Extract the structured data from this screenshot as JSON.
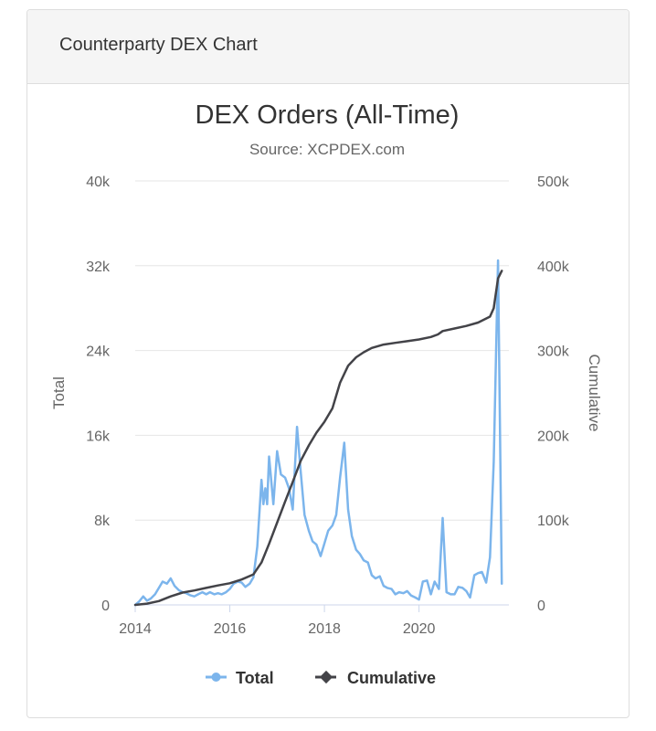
{
  "panel": {
    "title": "Counterparty DEX Chart"
  },
  "chart_data": {
    "type": "line",
    "title": "DEX Orders (All-Time)",
    "subtitle": "Source: XCPDEX.com",
    "grid": true,
    "legend_placement": "bottom-center",
    "x_axis": {
      "label": "",
      "min": 2014.0,
      "max": 2021.9,
      "ticks": [
        "2014",
        "2016",
        "2018",
        "2020"
      ],
      "tick_values": [
        2014,
        2016,
        2018,
        2020
      ]
    },
    "y_axis_left": {
      "label": "Total",
      "min": 0,
      "max": 40000,
      "ticks": [
        "0",
        "8k",
        "16k",
        "24k",
        "32k",
        "40k"
      ],
      "tick_values": [
        0,
        8000,
        16000,
        24000,
        32000,
        40000
      ]
    },
    "y_axis_right": {
      "label": "Cumulative",
      "min": 0,
      "max": 500000,
      "ticks": [
        "0",
        "100k",
        "200k",
        "300k",
        "400k",
        "500k"
      ],
      "tick_values": [
        0,
        100000,
        200000,
        300000,
        400000,
        500000
      ]
    },
    "series": [
      {
        "name": "Total",
        "axis": "left",
        "color": "#7cb5ec",
        "points": [
          [
            2014.0,
            0
          ],
          [
            2014.08,
            300
          ],
          [
            2014.17,
            800
          ],
          [
            2014.25,
            400
          ],
          [
            2014.33,
            600
          ],
          [
            2014.42,
            1000
          ],
          [
            2014.5,
            1600
          ],
          [
            2014.58,
            2200
          ],
          [
            2014.67,
            2000
          ],
          [
            2014.75,
            2500
          ],
          [
            2014.83,
            1800
          ],
          [
            2014.92,
            1400
          ],
          [
            2015.0,
            1200
          ],
          [
            2015.08,
            1100
          ],
          [
            2015.17,
            900
          ],
          [
            2015.25,
            800
          ],
          [
            2015.33,
            1000
          ],
          [
            2015.42,
            1200
          ],
          [
            2015.5,
            1000
          ],
          [
            2015.58,
            1200
          ],
          [
            2015.67,
            1000
          ],
          [
            2015.75,
            1100
          ],
          [
            2015.83,
            1000
          ],
          [
            2015.92,
            1200
          ],
          [
            2016.0,
            1500
          ],
          [
            2016.08,
            2000
          ],
          [
            2016.17,
            2200
          ],
          [
            2016.25,
            2100
          ],
          [
            2016.33,
            1700
          ],
          [
            2016.42,
            2000
          ],
          [
            2016.5,
            2600
          ],
          [
            2016.58,
            5500
          ],
          [
            2016.67,
            11800
          ],
          [
            2016.71,
            9500
          ],
          [
            2016.75,
            11000
          ],
          [
            2016.79,
            9500
          ],
          [
            2016.83,
            14000
          ],
          [
            2016.92,
            9500
          ],
          [
            2017.0,
            14500
          ],
          [
            2017.08,
            12300
          ],
          [
            2017.17,
            12000
          ],
          [
            2017.25,
            11000
          ],
          [
            2017.33,
            9000
          ],
          [
            2017.42,
            16800
          ],
          [
            2017.5,
            12500
          ],
          [
            2017.58,
            8500
          ],
          [
            2017.67,
            7000
          ],
          [
            2017.75,
            6000
          ],
          [
            2017.83,
            5700
          ],
          [
            2017.92,
            4600
          ],
          [
            2018.0,
            5800
          ],
          [
            2018.08,
            7000
          ],
          [
            2018.17,
            7500
          ],
          [
            2018.25,
            8500
          ],
          [
            2018.33,
            12000
          ],
          [
            2018.42,
            15300
          ],
          [
            2018.5,
            9000
          ],
          [
            2018.58,
            6500
          ],
          [
            2018.67,
            5200
          ],
          [
            2018.75,
            4800
          ],
          [
            2018.83,
            4200
          ],
          [
            2018.92,
            4000
          ],
          [
            2019.0,
            2800
          ],
          [
            2019.08,
            2500
          ],
          [
            2019.17,
            2700
          ],
          [
            2019.25,
            1800
          ],
          [
            2019.33,
            1600
          ],
          [
            2019.42,
            1500
          ],
          [
            2019.5,
            1000
          ],
          [
            2019.58,
            1200
          ],
          [
            2019.67,
            1100
          ],
          [
            2019.75,
            1300
          ],
          [
            2019.83,
            900
          ],
          [
            2019.92,
            700
          ],
          [
            2020.0,
            500
          ],
          [
            2020.08,
            2200
          ],
          [
            2020.17,
            2300
          ],
          [
            2020.25,
            1000
          ],
          [
            2020.33,
            2200
          ],
          [
            2020.42,
            1500
          ],
          [
            2020.5,
            8200
          ],
          [
            2020.58,
            1200
          ],
          [
            2020.67,
            1000
          ],
          [
            2020.75,
            1000
          ],
          [
            2020.83,
            1700
          ],
          [
            2020.92,
            1600
          ],
          [
            2021.0,
            1300
          ],
          [
            2021.08,
            700
          ],
          [
            2021.17,
            2800
          ],
          [
            2021.25,
            3000
          ],
          [
            2021.33,
            3100
          ],
          [
            2021.42,
            2100
          ],
          [
            2021.5,
            4500
          ],
          [
            2021.58,
            13500
          ],
          [
            2021.67,
            32500
          ],
          [
            2021.75,
            2000
          ]
        ]
      },
      {
        "name": "Cumulative",
        "axis": "right",
        "color": "#434348",
        "points": [
          [
            2014.0,
            0
          ],
          [
            2014.25,
            1500
          ],
          [
            2014.5,
            4500
          ],
          [
            2014.75,
            10000
          ],
          [
            2015.0,
            14500
          ],
          [
            2015.25,
            17000
          ],
          [
            2015.5,
            20000
          ],
          [
            2015.75,
            23000
          ],
          [
            2016.0,
            25500
          ],
          [
            2016.25,
            30000
          ],
          [
            2016.5,
            36000
          ],
          [
            2016.67,
            50000
          ],
          [
            2016.83,
            72000
          ],
          [
            2017.0,
            97000
          ],
          [
            2017.17,
            122000
          ],
          [
            2017.33,
            145000
          ],
          [
            2017.5,
            170000
          ],
          [
            2017.67,
            188000
          ],
          [
            2017.83,
            203000
          ],
          [
            2018.0,
            216000
          ],
          [
            2018.17,
            232000
          ],
          [
            2018.33,
            262000
          ],
          [
            2018.5,
            282000
          ],
          [
            2018.67,
            292000
          ],
          [
            2018.83,
            298000
          ],
          [
            2019.0,
            303000
          ],
          [
            2019.25,
            307000
          ],
          [
            2019.5,
            309000
          ],
          [
            2019.75,
            311000
          ],
          [
            2020.0,
            313000
          ],
          [
            2020.25,
            316000
          ],
          [
            2020.4,
            319000
          ],
          [
            2020.5,
            323000
          ],
          [
            2020.75,
            326000
          ],
          [
            2021.0,
            329000
          ],
          [
            2021.25,
            333000
          ],
          [
            2021.5,
            340000
          ],
          [
            2021.58,
            350000
          ],
          [
            2021.67,
            385000
          ],
          [
            2021.75,
            394000
          ]
        ]
      }
    ]
  }
}
